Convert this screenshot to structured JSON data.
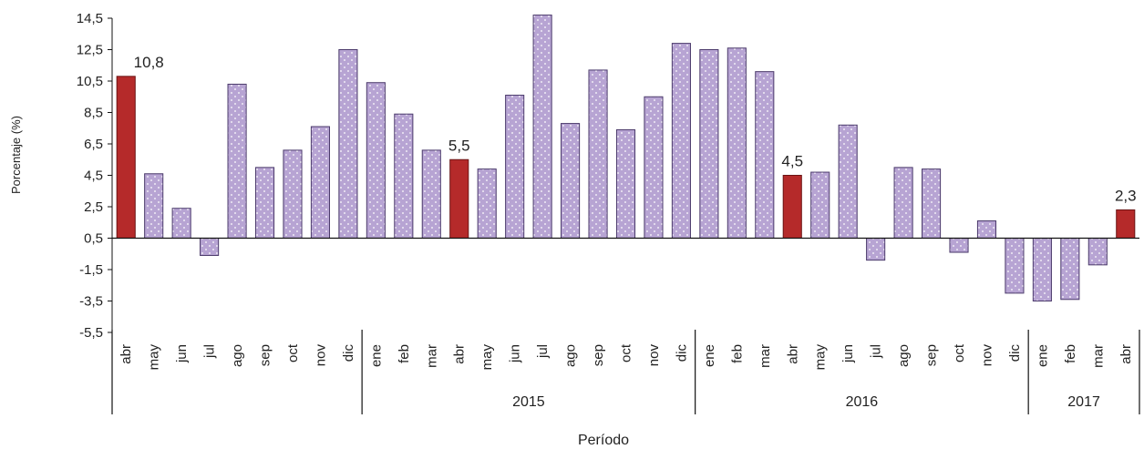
{
  "chart_data": {
    "type": "bar",
    "xlabel": "Período",
    "ylabel": "Porcentaje (%)",
    "y_ticks": [
      "14,5",
      "12,5",
      "10,5",
      "8,5",
      "6,5",
      "4,5",
      "2,5",
      "0,5",
      "-1,5",
      "-3,5",
      "-5,5"
    ],
    "ylim": [
      -5.5,
      14.5
    ],
    "grid": false,
    "categories": [
      "abr",
      "may",
      "jun",
      "jul",
      "ago",
      "sep",
      "oct",
      "nov",
      "dic",
      "ene",
      "feb",
      "mar",
      "abr",
      "may",
      "jun",
      "jul",
      "ago",
      "sep",
      "oct",
      "nov",
      "dic",
      "ene",
      "feb",
      "mar",
      "abr",
      "may",
      "jun",
      "jul",
      "ago",
      "sep",
      "oct",
      "nov",
      "dic",
      "ene",
      "feb",
      "mar",
      "abr"
    ],
    "values": [
      10.8,
      4.6,
      2.4,
      -0.6,
      10.3,
      5.0,
      6.1,
      7.6,
      12.5,
      10.4,
      8.4,
      6.1,
      5.5,
      4.9,
      9.6,
      14.7,
      7.8,
      11.2,
      7.4,
      9.5,
      12.9,
      12.5,
      12.6,
      11.1,
      4.5,
      4.7,
      7.7,
      -0.9,
      5.0,
      4.9,
      -0.4,
      1.6,
      -3.0,
      -3.5,
      -3.4,
      -1.2,
      2.3
    ],
    "year_groups": [
      {
        "label": "",
        "start": 0,
        "end": 8
      },
      {
        "label": "2015",
        "start": 9,
        "end": 20
      },
      {
        "label": "2016",
        "start": 21,
        "end": 32
      },
      {
        "label": "2017",
        "start": 33,
        "end": 36
      }
    ],
    "highlighted": [
      {
        "index": 0,
        "label": "10,8"
      },
      {
        "index": 12,
        "label": "5,5"
      },
      {
        "index": 24,
        "label": "4,5"
      },
      {
        "index": 36,
        "label": "2,3"
      }
    ],
    "colors": {
      "bar_fill": "#b7a4d3",
      "bar_stroke": "#4b3a6b",
      "highlight_fill": "#b52a2a",
      "highlight_stroke": "#6b1414",
      "axis": "#111111"
    }
  }
}
